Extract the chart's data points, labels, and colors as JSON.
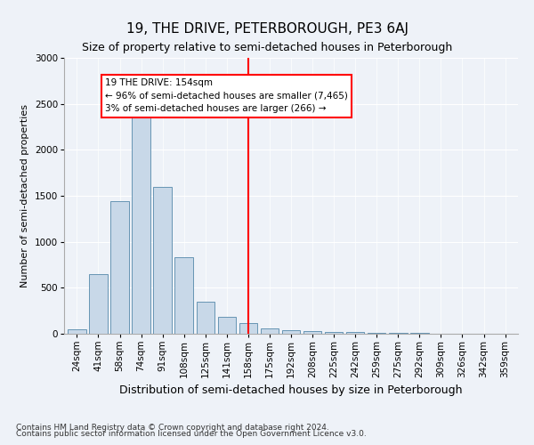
{
  "title": "19, THE DRIVE, PETERBOROUGH, PE3 6AJ",
  "subtitle": "Size of property relative to semi-detached houses in Peterborough",
  "xlabel": "Distribution of semi-detached houses by size in Peterborough",
  "ylabel": "Number of semi-detached properties",
  "categories": [
    "24sqm",
    "41sqm",
    "58sqm",
    "74sqm",
    "91sqm",
    "108sqm",
    "125sqm",
    "141sqm",
    "158sqm",
    "175sqm",
    "192sqm",
    "208sqm",
    "225sqm",
    "242sqm",
    "259sqm",
    "275sqm",
    "292sqm",
    "309sqm",
    "326sqm",
    "342sqm",
    "359sqm"
  ],
  "values": [
    50,
    650,
    1440,
    2500,
    1600,
    830,
    350,
    185,
    115,
    60,
    38,
    28,
    20,
    15,
    10,
    8,
    5,
    3,
    3,
    3,
    3
  ],
  "bar_color": "#c8d8e8",
  "bar_edge_color": "#5588aa",
  "vline_x": 8.0,
  "vline_color": "red",
  "annotation_title": "19 THE DRIVE: 154sqm",
  "annotation_line1": "← 96% of semi-detached houses are smaller (7,465)",
  "annotation_line2": "3% of semi-detached houses are larger (266) →",
  "annotation_box_color": "white",
  "annotation_box_edge": "red",
  "ylim": [
    0,
    3000
  ],
  "yticks": [
    0,
    500,
    1000,
    1500,
    2000,
    2500,
    3000
  ],
  "footer1": "Contains HM Land Registry data © Crown copyright and database right 2024.",
  "footer2": "Contains public sector information licensed under the Open Government Licence v3.0.",
  "bg_color": "#eef2f8",
  "grid_color": "#ffffff",
  "title_fontsize": 11,
  "subtitle_fontsize": 9,
  "xlabel_fontsize": 9,
  "ylabel_fontsize": 8,
  "tick_fontsize": 7.5,
  "footer_fontsize": 6.5,
  "annot_fontsize": 7.5
}
